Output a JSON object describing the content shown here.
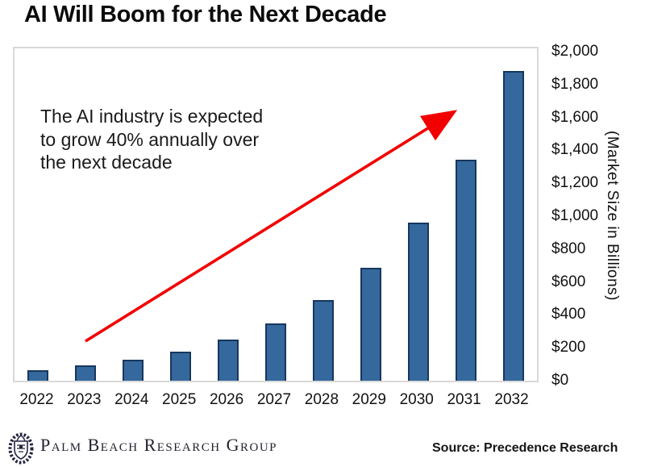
{
  "page": {
    "title": "AI Will Boom for the Next Decade"
  },
  "annotation": {
    "text": "The AI industry is expected\nto grow 40% annually over\nthe next decade"
  },
  "chart_data": {
    "type": "bar",
    "title": "AI Will Boom for the Next Decade",
    "categories": [
      "2022",
      "2023",
      "2024",
      "2025",
      "2026",
      "2027",
      "2028",
      "2029",
      "2030",
      "2031",
      "2032"
    ],
    "values": [
      65,
      91,
      127,
      178,
      250,
      350,
      490,
      685,
      959,
      1343,
      1880
    ],
    "xlabel": "",
    "ylabel": "(Market Size in Billions)",
    "ylim": [
      0,
      2000
    ],
    "yticks": [
      0,
      200,
      400,
      600,
      800,
      1000,
      1200,
      1400,
      1600,
      1800,
      2000
    ],
    "ytick_labels": [
      "$0",
      "$200",
      "$400",
      "$600",
      "$800",
      "$1,000",
      "$1,200",
      "$1,400",
      "$1,600",
      "$1,800",
      "$2,000"
    ],
    "grid": false,
    "legend": "none",
    "annotation": "The AI industry is expected to grow 40% annually over the next decade",
    "bar_color": "#35689C",
    "bar_border_color": "#17375E",
    "arrow_color": "#F20000"
  },
  "footer": {
    "brand": "Palm Beach Research Group",
    "source": "Source: Precedence Research",
    "logo_icon": "laurel-crest"
  },
  "colors": {
    "title_text": "#0b0b0b",
    "chart_border": "#d9d9d9",
    "background": "#ffffff"
  }
}
